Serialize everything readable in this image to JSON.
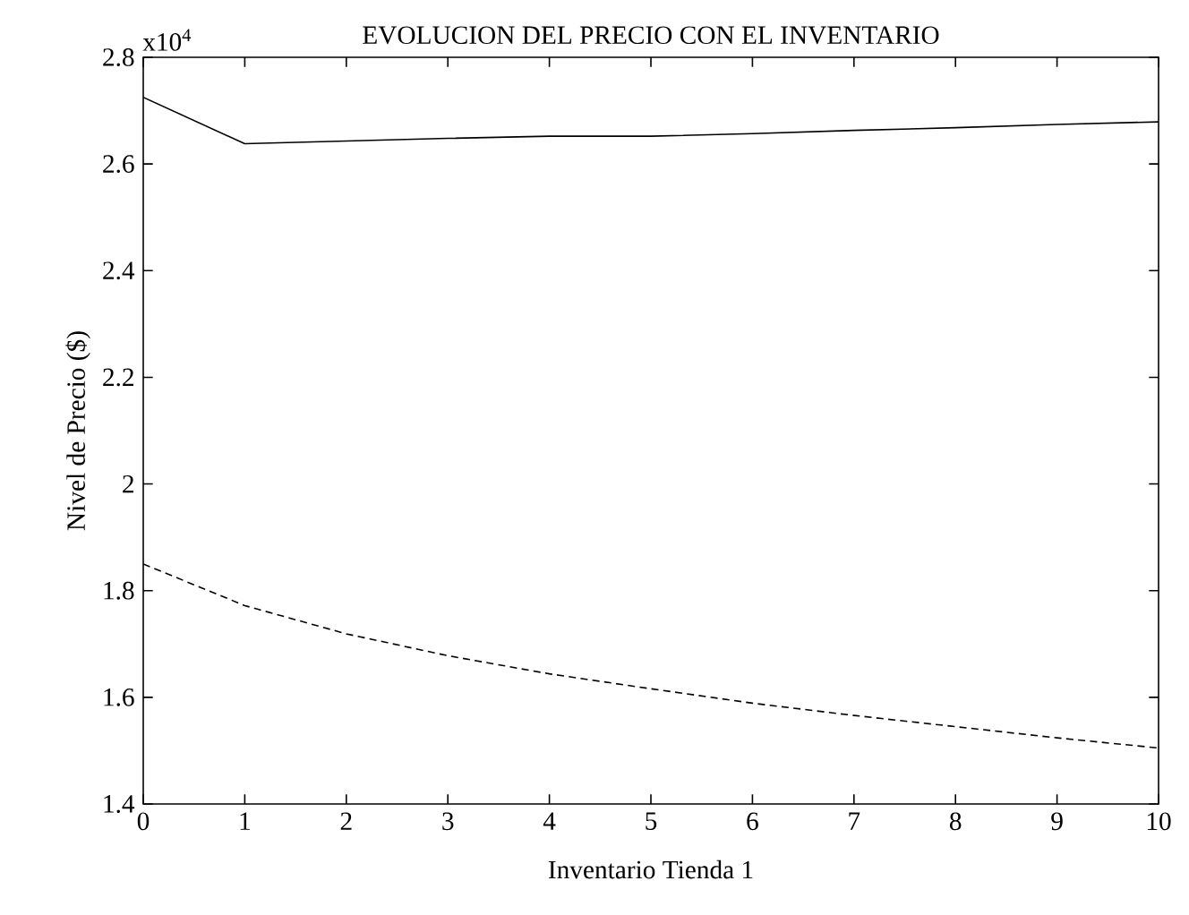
{
  "chart_data": {
    "type": "line",
    "title": "EVOLUCION DEL PRECIO CON EL INVENTARIO",
    "xlabel": "Inventario Tienda 1",
    "ylabel": "Nivel de Precio ($)",
    "annotations": [
      "x10$^{4}$"
    ],
    "x": [
      0,
      1,
      2,
      3,
      4,
      5,
      6,
      7,
      8,
      9,
      10
    ],
    "series": [
      {
        "color": "#000000",
        "line_style": "solid",
        "values": [
          2.725,
          2.638,
          2.643,
          2.648,
          2.652,
          2.652,
          2.657,
          2.663,
          2.668,
          2.674,
          2.679
        ]
      },
      {
        "color": "#000000",
        "line_style": "dashed",
        "values": [
          1.85,
          1.772,
          1.719,
          1.678,
          1.644,
          1.616,
          1.589,
          1.566,
          1.545,
          1.524,
          1.505
        ]
      }
    ],
    "xlim": [
      0,
      10
    ],
    "ylim": [
      1.4,
      2.8
    ],
    "xticks": [
      0,
      1,
      2,
      3,
      4,
      5,
      6,
      7,
      8,
      9,
      10
    ],
    "yticks": [
      1.4,
      1.6,
      1.8,
      2,
      2.2,
      2.4,
      2.6,
      2.8
    ],
    "grid": false,
    "legend": false,
    "marker": "none"
  }
}
